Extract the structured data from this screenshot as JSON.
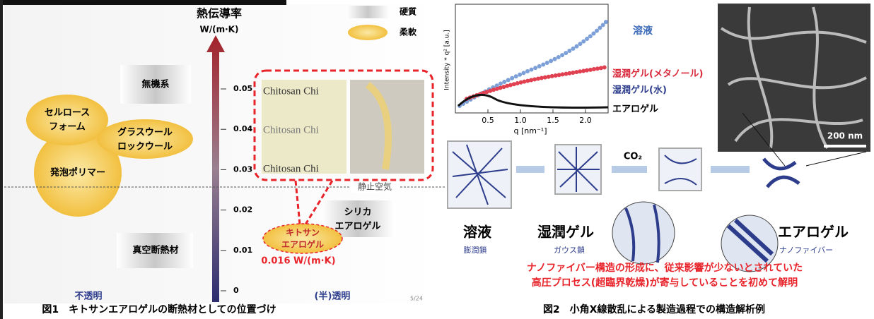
{
  "figure1": {
    "axis_title": "熱伝導率",
    "axis_unit": "W/(m·K)",
    "ticks": [
      0,
      0.01,
      0.02,
      0.03,
      0.04,
      0.05
    ],
    "legend": [
      "硬質",
      "柔軟"
    ],
    "categories": {
      "inorganic": "無機系",
      "cellulose_foam": [
        "セルロース",
        "フォーム"
      ],
      "glass_wool": [
        "グラスウール",
        "ロックウール"
      ],
      "foam_polymer": "発泡ポリマー",
      "vacuum": "真空断熱材",
      "silica_aerogel": [
        "シリカ",
        "エアロゲル"
      ],
      "chitosan_aerogel": [
        "キトサン",
        "エアロゲル"
      ]
    },
    "photo_text": [
      "Chitosan Chi",
      "Chitosan Chi",
      "Chitosan Chi"
    ],
    "reference_line": "静止空気",
    "highlight_value": "0.016 W/(m·K)",
    "opacity_labels": [
      "不透明",
      "(半)透明"
    ],
    "page_number": "5/24",
    "caption": "図1　キトサンエアロゲルの断熱材としての位置づけ"
  },
  "figure2": {
    "plot": {
      "y_label": "Intensity * q² [a.u.]",
      "x_label": "q [nm⁻¹]",
      "xticks": [
        {
          "value": 0.5,
          "label": "0.5"
        },
        {
          "value": 1,
          "label": "1.0"
        },
        {
          "value": 1.5,
          "label": "1.5"
        },
        {
          "value": 2,
          "label": "2.0"
        }
      ],
      "series_labels": [
        "溶液",
        "湿潤ゲル(メタノール)",
        "湿潤ゲル(水)",
        "エアロゲル"
      ]
    },
    "scale_bar": "200 nm",
    "gas": "CO₂",
    "stages": [
      {
        "name": "溶液",
        "sub": "膨潤鎖"
      },
      {
        "name": "湿潤ゲル",
        "sub": "ガウス鎖"
      },
      {
        "name": "エアロゲル",
        "sub": "ナノファイバー"
      }
    ],
    "conclusion": [
      "ナノファイバー構造の形成に、従来影響が少ないとされていた",
      "高圧プロセス(超臨界乾燥)が寄与していることを初めて解明"
    ],
    "caption": "図2　小角X線散乱による製造過程での構造解析例"
  }
}
